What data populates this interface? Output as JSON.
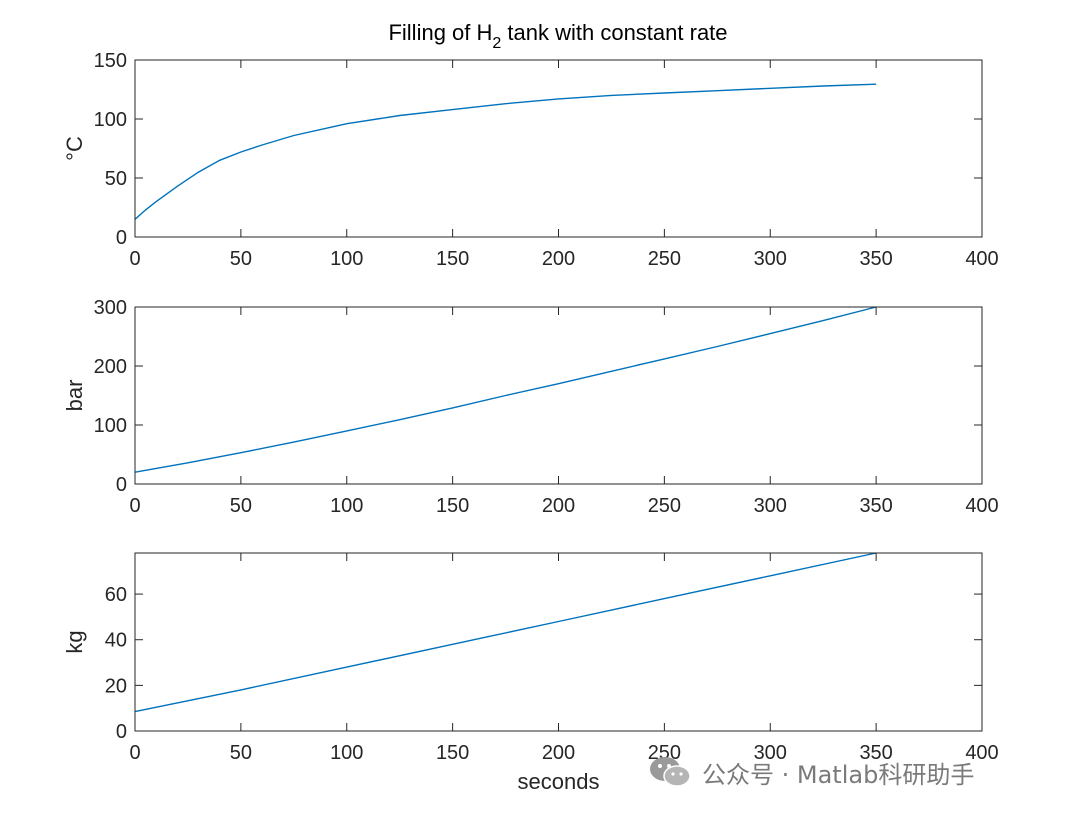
{
  "colors": {
    "series": "#0072BD",
    "axis": "#262626",
    "watermark": "#7a7a7a"
  },
  "watermark": {
    "text": "公众号 · Matlab科研助手",
    "icon": "wechat-icon"
  },
  "chart_data": [
    {
      "type": "line",
      "title": "Filling of H₂ tank with constant rate",
      "title_parts": {
        "before": "Filling of H",
        "subscript": "2",
        "after": " tank with constant rate"
      },
      "xlabel": "",
      "ylabel": "°C",
      "xlim": [
        0,
        400
      ],
      "ylim": [
        0,
        150
      ],
      "xticks": [
        0,
        50,
        100,
        150,
        200,
        250,
        300,
        350,
        400
      ],
      "yticks": [
        0,
        50,
        100,
        150
      ],
      "grid": false,
      "series": [
        {
          "x": [
            0,
            5,
            10,
            20,
            30,
            40,
            50,
            60,
            75,
            100,
            125,
            150,
            175,
            200,
            225,
            250,
            275,
            300,
            325,
            350
          ],
          "y": [
            15,
            23,
            30,
            43,
            55,
            65,
            72,
            78,
            86,
            96,
            103,
            108,
            113,
            117,
            120,
            122,
            124,
            126,
            128,
            129.5
          ]
        }
      ]
    },
    {
      "type": "line",
      "title": "",
      "xlabel": "",
      "ylabel": "bar",
      "xlim": [
        0,
        400
      ],
      "ylim": [
        0,
        300
      ],
      "xticks": [
        0,
        50,
        100,
        150,
        200,
        250,
        300,
        350,
        400
      ],
      "yticks": [
        0,
        100,
        200,
        300
      ],
      "grid": false,
      "series": [
        {
          "x": [
            0,
            25,
            50,
            75,
            100,
            125,
            150,
            175,
            200,
            225,
            250,
            275,
            300,
            325,
            350
          ],
          "y": [
            20,
            36,
            53,
            71,
            90,
            109,
            129,
            150,
            170,
            191,
            212,
            233,
            255,
            277,
            300
          ]
        }
      ]
    },
    {
      "type": "line",
      "title": "",
      "xlabel": "seconds",
      "ylabel": "kg",
      "xlim": [
        0,
        400
      ],
      "ylim": [
        0,
        78
      ],
      "xticks": [
        0,
        50,
        100,
        150,
        200,
        250,
        300,
        350,
        400
      ],
      "yticks": [
        0,
        20,
        40,
        60
      ],
      "grid": false,
      "series": [
        {
          "x": [
            0,
            50,
            100,
            150,
            200,
            250,
            300,
            350
          ],
          "y": [
            8.5,
            18,
            28,
            38,
            48,
            58,
            68,
            78
          ]
        }
      ]
    }
  ]
}
